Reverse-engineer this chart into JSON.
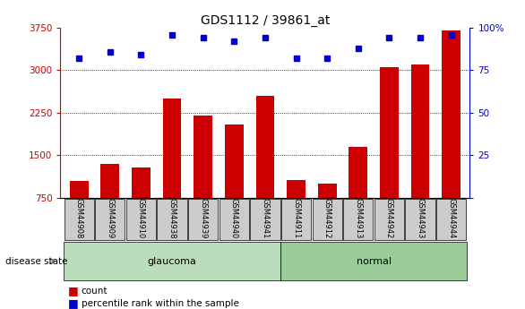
{
  "title": "GDS1112 / 39861_at",
  "samples": [
    "GSM44908",
    "GSM44909",
    "GSM44910",
    "GSM44938",
    "GSM44939",
    "GSM44940",
    "GSM44941",
    "GSM44911",
    "GSM44912",
    "GSM44913",
    "GSM44942",
    "GSM44943",
    "GSM44944"
  ],
  "counts": [
    1050,
    1350,
    1280,
    2500,
    2200,
    2050,
    2550,
    1070,
    1000,
    1650,
    3050,
    3100,
    3700
  ],
  "percentiles": [
    82,
    86,
    84,
    96,
    94,
    92,
    94,
    82,
    82,
    88,
    94,
    94,
    96
  ],
  "groups": [
    "glaucoma",
    "glaucoma",
    "glaucoma",
    "glaucoma",
    "glaucoma",
    "glaucoma",
    "glaucoma",
    "normal",
    "normal",
    "normal",
    "normal",
    "normal",
    "normal"
  ],
  "ylim_left": [
    750,
    3750
  ],
  "ylim_right": [
    0,
    100
  ],
  "yticks_left": [
    750,
    1500,
    2250,
    3000,
    3750
  ],
  "yticks_right": [
    0,
    25,
    50,
    75,
    100
  ],
  "bar_color": "#cc0000",
  "dot_color": "#0000cc",
  "glaucoma_color": "#bbddbb",
  "normal_color": "#99cc99",
  "label_bg_color": "#cccccc",
  "left_axis_color": "#cc0000",
  "right_axis_color": "#0000cc"
}
